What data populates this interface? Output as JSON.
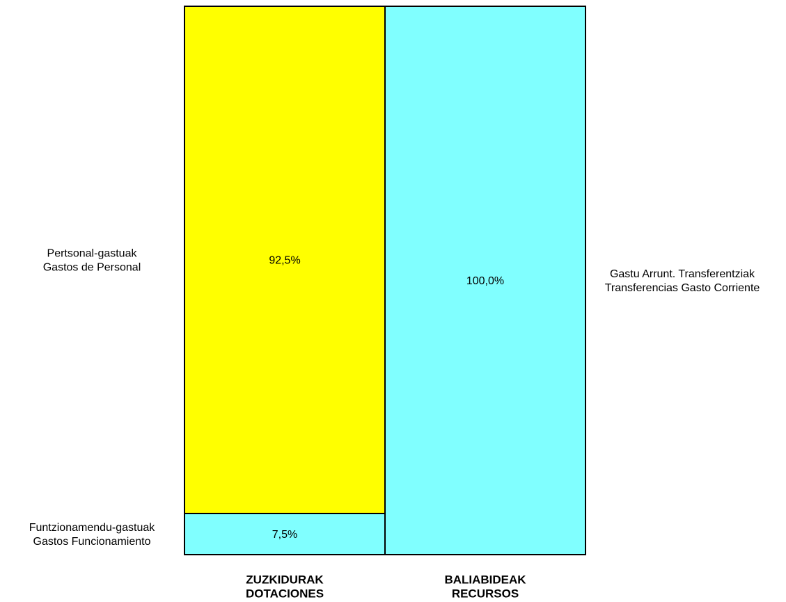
{
  "chart_data": {
    "type": "stacked-bar",
    "columns": [
      {
        "name_lines": [
          "ZUZKIDURAK",
          "DOTACIONES"
        ],
        "label_side": "left",
        "segments": [
          {
            "label_lines": [
              "Funtzionamendu-gastuak",
              "Gastos Funcionamiento"
            ],
            "value": 7.5,
            "value_label": "7,5%",
            "color": "#80ffff"
          },
          {
            "label_lines": [
              "Pertsonal-gastuak",
              "Gastos de Personal"
            ],
            "value": 92.5,
            "value_label": "92,5%",
            "color": "#ffff00"
          }
        ]
      },
      {
        "name_lines": [
          "BALIABIDEAK",
          "RECURSOS"
        ],
        "label_side": "right",
        "segments": [
          {
            "label_lines": [
              "Gastu Arrunt. Transferentziak",
              "Transferencias Gasto Corriente"
            ],
            "value": 100.0,
            "value_label": "100,0%",
            "color": "#80ffff"
          }
        ]
      }
    ],
    "ylim": [
      0,
      100
    ]
  }
}
